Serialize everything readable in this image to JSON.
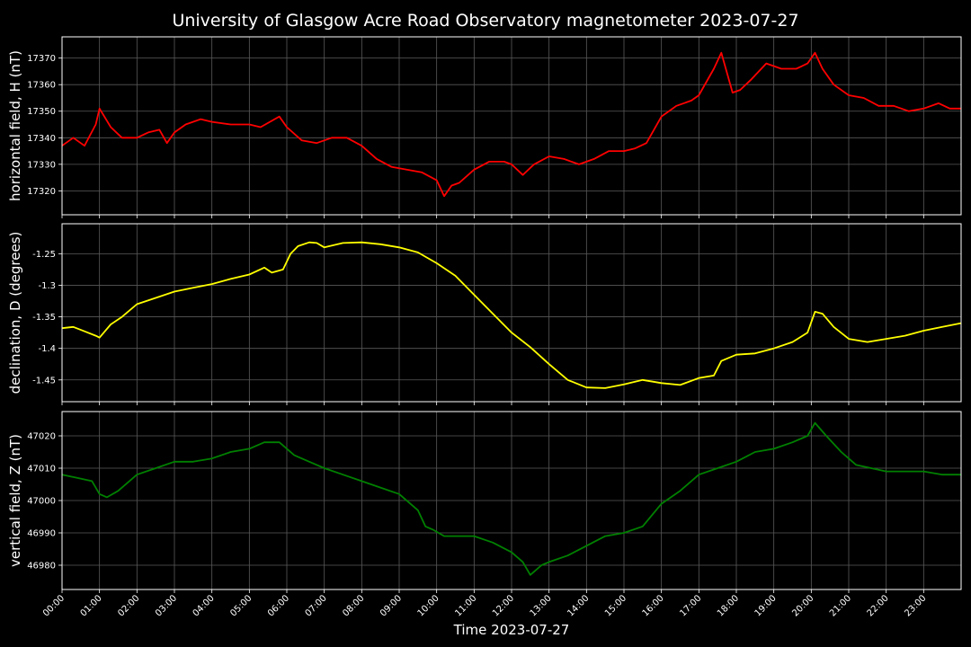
{
  "title": "University of Glasgow Acre Road Observatory magnetometer 2023-07-27",
  "colors": {
    "background": "#000000",
    "grid": "#5a5a5a",
    "H": "#ff0000",
    "D": "#ffff00",
    "Z": "#008000",
    "text": "#ffffff"
  },
  "chart_data": [
    {
      "type": "line",
      "name": "H",
      "ylabel": "horizontal field, H (nT)",
      "xlabel": "",
      "ylim": [
        17311,
        17378
      ],
      "yticks": [
        17320,
        17330,
        17340,
        17350,
        17360,
        17370
      ],
      "grid": true,
      "x": [
        0,
        0.3,
        0.6,
        0.9,
        1.0,
        1.3,
        1.6,
        2.0,
        2.3,
        2.6,
        2.8,
        3.0,
        3.3,
        3.7,
        4.0,
        4.5,
        5.0,
        5.3,
        5.8,
        6.0,
        6.4,
        6.8,
        7.2,
        7.6,
        8.0,
        8.4,
        8.8,
        9.2,
        9.6,
        10.0,
        10.2,
        10.4,
        10.6,
        11.0,
        11.4,
        11.8,
        12.0,
        12.3,
        12.6,
        13.0,
        13.4,
        13.8,
        14.2,
        14.6,
        15.0,
        15.3,
        15.6,
        16.0,
        16.4,
        16.8,
        17.0,
        17.4,
        17.6,
        17.9,
        18.1,
        18.4,
        18.8,
        19.2,
        19.6,
        19.9,
        20.1,
        20.3,
        20.6,
        21.0,
        21.4,
        21.8,
        22.2,
        22.6,
        23.0,
        23.4,
        23.7,
        24.0
      ],
      "y": [
        17337,
        17340,
        17337,
        17345,
        17351,
        17344,
        17340,
        17340,
        17342,
        17343,
        17338,
        17342,
        17345,
        17347,
        17346,
        17345,
        17345,
        17344,
        17348,
        17344,
        17339,
        17338,
        17340,
        17340,
        17337,
        17332,
        17329,
        17328,
        17327,
        17324,
        17318,
        17322,
        17323,
        17328,
        17331,
        17331,
        17330,
        17326,
        17330,
        17333,
        17332,
        17330,
        17332,
        17335,
        17335,
        17336,
        17338,
        17348,
        17352,
        17354,
        17356,
        17366,
        17372,
        17357,
        17358,
        17362,
        17368,
        17366,
        17366,
        17368,
        17372,
        17366,
        17360,
        17356,
        17355,
        17352,
        17352,
        17350,
        17351,
        17353,
        17351,
        17351
      ]
    },
    {
      "type": "line",
      "name": "D",
      "ylabel": "declination, D (degrees)",
      "xlabel": "",
      "ylim": [
        -1.4845,
        -1.2025
      ],
      "yticks": [
        -1.25,
        -1.3,
        -1.35,
        -1.4,
        -1.45
      ],
      "grid": true,
      "x": [
        0,
        0.3,
        0.6,
        0.9,
        1.0,
        1.3,
        1.6,
        2.0,
        2.5,
        3.0,
        3.5,
        4.0,
        4.5,
        5.0,
        5.4,
        5.6,
        5.9,
        6.1,
        6.3,
        6.6,
        6.8,
        7.0,
        7.5,
        8.0,
        8.5,
        9.0,
        9.5,
        10.0,
        10.5,
        11.0,
        11.5,
        12.0,
        12.5,
        13.0,
        13.5,
        14.0,
        14.5,
        15.0,
        15.5,
        16.0,
        16.5,
        17.0,
        17.4,
        17.6,
        18.0,
        18.5,
        19.0,
        19.5,
        19.9,
        20.1,
        20.3,
        20.6,
        21.0,
        21.5,
        22.0,
        22.5,
        23.0,
        23.5,
        24.0
      ],
      "y": [
        -1.368,
        -1.366,
        -1.373,
        -1.38,
        -1.383,
        -1.362,
        -1.35,
        -1.33,
        -1.32,
        -1.31,
        -1.304,
        -1.298,
        -1.29,
        -1.283,
        -1.272,
        -1.28,
        -1.275,
        -1.25,
        -1.238,
        -1.232,
        -1.233,
        -1.24,
        -1.233,
        -1.232,
        -1.235,
        -1.24,
        -1.248,
        -1.265,
        -1.285,
        -1.315,
        -1.345,
        -1.375,
        -1.398,
        -1.425,
        -1.45,
        -1.462,
        -1.463,
        -1.457,
        -1.45,
        -1.455,
        -1.458,
        -1.447,
        -1.443,
        -1.42,
        -1.41,
        -1.408,
        -1.4,
        -1.39,
        -1.375,
        -1.342,
        -1.345,
        -1.366,
        -1.385,
        -1.39,
        -1.385,
        -1.38,
        -1.372,
        -1.366,
        -1.36
      ]
    },
    {
      "type": "line",
      "name": "Z",
      "ylabel": "vertical field, Z (nT)",
      "xlabel": "Time 2023-07-27",
      "ylim": [
        46972.5,
        47027.5
      ],
      "yticks": [
        46980,
        46990,
        47000,
        47010,
        47020
      ],
      "xticks": [
        "00:00",
        "01:00",
        "02:00",
        "03:00",
        "04:00",
        "05:00",
        "06:00",
        "07:00",
        "08:00",
        "09:00",
        "10:00",
        "11:00",
        "12:00",
        "13:00",
        "14:00",
        "15:00",
        "16:00",
        "17:00",
        "18:00",
        "19:00",
        "20:00",
        "21:00",
        "22:00",
        "23:00"
      ],
      "xlim": [
        0,
        24
      ],
      "grid": true,
      "x": [
        0,
        0.4,
        0.8,
        1.0,
        1.2,
        1.5,
        2.0,
        2.5,
        3.0,
        3.5,
        4.0,
        4.5,
        5.0,
        5.4,
        5.8,
        6.2,
        6.6,
        7.0,
        7.5,
        8.0,
        8.5,
        9.0,
        9.5,
        9.7,
        9.9,
        10.2,
        10.5,
        11.0,
        11.5,
        12.0,
        12.3,
        12.5,
        12.8,
        13.0,
        13.5,
        14.0,
        14.5,
        15.0,
        15.5,
        16.0,
        16.5,
        17.0,
        17.5,
        18.0,
        18.5,
        19.0,
        19.5,
        19.9,
        20.1,
        20.4,
        20.8,
        21.2,
        21.6,
        22.0,
        22.5,
        23.0,
        23.5,
        24.0
      ],
      "y": [
        47008,
        47007,
        47006,
        47002,
        47001,
        47003,
        47008,
        47010,
        47012,
        47012,
        47013,
        47015,
        47016,
        47018,
        47018,
        47014,
        47012,
        47010,
        47008,
        47006,
        47004,
        47002,
        46997,
        46992,
        46991,
        46989,
        46989,
        46989,
        46987,
        46984,
        46981,
        46977,
        46980,
        46981,
        46983,
        46986,
        46989,
        46990,
        46992,
        46999,
        47003,
        47008,
        47010,
        47012,
        47015,
        47016,
        47018,
        47020,
        47024,
        47020,
        47015,
        47011,
        47010,
        47009,
        47009,
        47009,
        47008,
        47008
      ]
    }
  ]
}
